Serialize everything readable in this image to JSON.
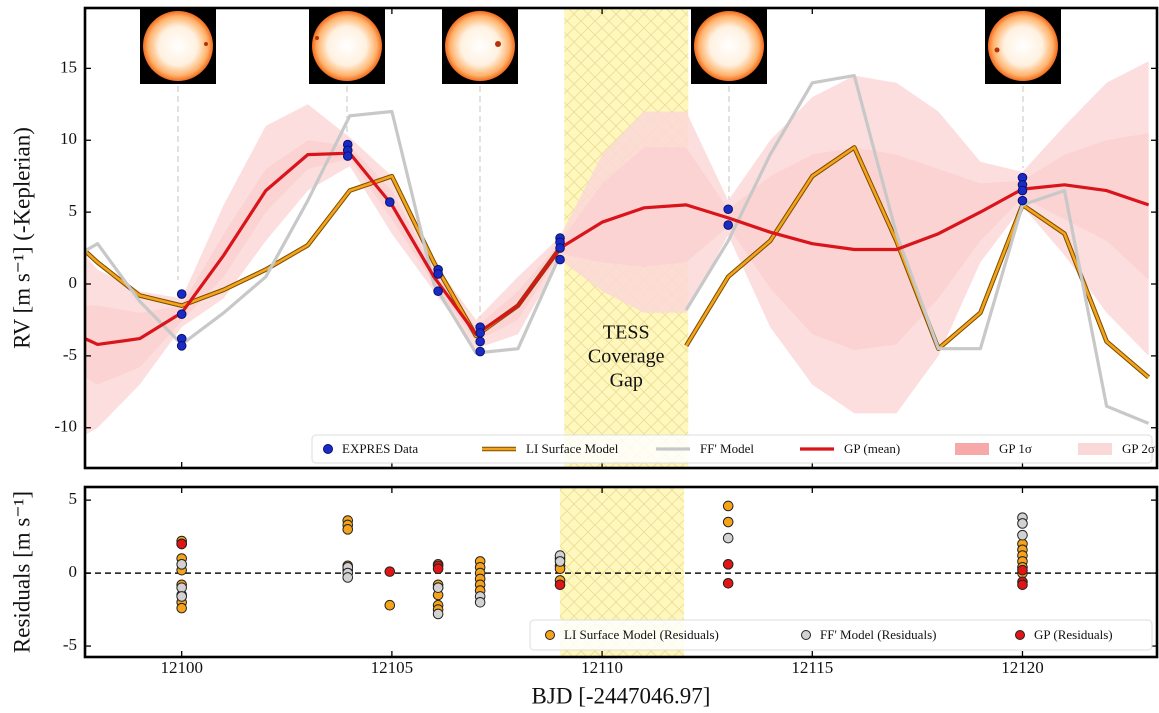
{
  "chart_data": [
    {
      "type": "line",
      "y_label": "RV [m s⁻¹] (-Keplerian)",
      "xlim": [
        12097.7,
        12123.2
      ],
      "xticks": [
        12100,
        12105,
        12110,
        12115,
        12120
      ],
      "ylim": [
        -12.8,
        19.2
      ],
      "yticks": [
        -10,
        -5,
        0,
        5,
        10,
        15
      ],
      "gap": [
        12109.1,
        12112.05
      ],
      "annotation": [
        "TESS",
        "Coverage",
        "Gap"
      ],
      "legend": "lower right",
      "x": [
        12097.7,
        12098,
        12099,
        12100,
        12101,
        12102,
        12103,
        12104,
        12105,
        12106,
        12107,
        12108,
        12109,
        12110,
        12111,
        12112,
        12113,
        12114,
        12115,
        12116,
        12117,
        12118,
        12119,
        12120,
        12121,
        12122,
        12123
      ],
      "series": [
        {
          "name": "EXPRES Data",
          "type": "scatter",
          "color": "#1a2bc4",
          "x": [
            12100,
            12100,
            12100,
            12100,
            12103.95,
            12103.95,
            12103.95,
            12104.95,
            12106.1,
            12106.1,
            12106.1,
            12107.1,
            12107.1,
            12107.1,
            12107.1,
            12109,
            12109,
            12109,
            12109,
            12113,
            12113,
            12120,
            12120,
            12120,
            12120
          ],
          "values": [
            -0.7,
            -2.1,
            -3.8,
            -4.3,
            9.7,
            9.3,
            8.9,
            5.7,
            1.0,
            0.7,
            -0.5,
            -3.0,
            -3.4,
            -4.0,
            -4.7,
            3.2,
            2.9,
            2.5,
            1.7,
            5.2,
            4.1,
            7.4,
            6.9,
            6.5,
            5.8
          ]
        },
        {
          "name": "LI Surface Model",
          "type": "line",
          "color": "#f5a31a",
          "values": [
            2.3,
            1.5,
            -0.8,
            -1.5,
            -0.4,
            1.0,
            2.7,
            6.5,
            7.5,
            1.5,
            -3.6,
            -1.5,
            2.5,
            null,
            null,
            -4.3,
            0.5,
            3,
            7.5,
            9.5,
            3,
            -4.5,
            -2,
            5.5,
            3.5,
            -4,
            -6.5
          ]
        },
        {
          "name": "FF' Model",
          "type": "line",
          "color": "#c8c8c8",
          "values": [
            2.3,
            2.8,
            -1.2,
            -4.2,
            -2.0,
            0.5,
            5.8,
            11.7,
            12,
            0,
            -4.8,
            -4.5,
            2.0,
            null,
            null,
            -1.8,
            3,
            9,
            14,
            14.5,
            3.5,
            -4.5,
            -4.5,
            5.5,
            6.5,
            -8.5,
            -9.7
          ]
        },
        {
          "name": "GP (mean)",
          "type": "line",
          "color": "#d9141b",
          "values": [
            -3.8,
            -4.2,
            -3.8,
            -2.0,
            2.0,
            6.5,
            9.0,
            9.1,
            5.5,
            0.5,
            -3.5,
            -1.5,
            2.5,
            4.3,
            5.3,
            5.5,
            4.6,
            3.6,
            2.8,
            2.4,
            2.4,
            3.5,
            5.0,
            6.6,
            6.9,
            6.5,
            5.5
          ]
        },
        {
          "name": "GP 1σ",
          "type": "band",
          "color": "#f7a9a9",
          "upper": [
            -1.5,
            -1.5,
            -2.0,
            -1.5,
            3.5,
            8,
            10,
            9.6,
            6.5,
            1.0,
            -3,
            -0.5,
            2.9,
            7,
            9.5,
            9.5,
            5.2,
            7.5,
            9,
            9.5,
            9,
            8,
            7,
            7.2,
            9,
            10,
            10.5
          ],
          "lower": [
            -6.5,
            -7,
            -5.8,
            -2.6,
            0.5,
            5,
            8,
            8.7,
            4.5,
            0,
            -4,
            -2.5,
            2.1,
            1.5,
            1.2,
            1.5,
            4.0,
            -0.3,
            -3.5,
            -4.6,
            -4.2,
            -1,
            3,
            6,
            4.5,
            3,
            0.3
          ]
        },
        {
          "name": "GP 2σ",
          "type": "band",
          "color": "#fbd8d8",
          "upper": [
            2,
            1,
            -0.5,
            -1,
            5.5,
            11,
            12.5,
            10.2,
            7.5,
            1.5,
            -2.5,
            0.5,
            3.3,
            9,
            12,
            12,
            5.8,
            10,
            13,
            14.5,
            14,
            12,
            8.5,
            7.8,
            11,
            14,
            15.5
          ],
          "lower": [
            -10.5,
            -10,
            -7,
            -3,
            -1,
            3,
            6.5,
            8.2,
            3.5,
            -0.5,
            -4.5,
            -3.5,
            1.7,
            -0.5,
            -2,
            -2,
            3.4,
            -3,
            -7,
            -9,
            -9,
            -5,
            1.5,
            5.4,
            2,
            -2,
            -5
          ]
        }
      ]
    },
    {
      "type": "scatter",
      "x_label": "BJD [-2447046.97]",
      "y_label": "Residuals [m s⁻¹]",
      "xlim": [
        12097.7,
        12123.2
      ],
      "xticks": [
        12100,
        12105,
        12110,
        12115,
        12120
      ],
      "ylim": [
        -5.75,
        5.9
      ],
      "yticks": [
        -5,
        0,
        5
      ],
      "gap": [
        12109.0,
        12111.95
      ],
      "hline": 0,
      "legend": "lower right",
      "series": [
        {
          "name": "LI Surface Model (Residuals)",
          "color": "#f5a31a",
          "x": [
            12100,
            12100,
            12100,
            12100,
            12100,
            12100,
            12100,
            12103.95,
            12103.95,
            12103.95,
            12103.95,
            12103.95,
            12104.95,
            12106.1,
            12106.1,
            12106.1,
            12106.1,
            12106.1,
            12106.1,
            12107.1,
            12107.1,
            12107.1,
            12107.1,
            12107.1,
            12107.1,
            12109,
            12109,
            12109,
            12109,
            12113,
            12113,
            12120,
            12120,
            12120,
            12120,
            12120,
            12120
          ],
          "values": [
            2.2,
            1.0,
            0.2,
            -0.8,
            -1.5,
            -2.0,
            -2.4,
            3.6,
            3.3,
            3.0,
            0.5,
            0.2,
            -2.2,
            0.6,
            -0.8,
            -1.0,
            -1.5,
            -2.2,
            -2.5,
            0.8,
            0.4,
            0,
            -0.4,
            -0.8,
            -1.2,
            1.0,
            0.5,
            0.3,
            -0.5,
            4.6,
            3.5,
            2.0,
            1.6,
            1.2,
            0.8,
            0.4,
            0
          ]
        },
        {
          "name": "FF' Model (Residuals)",
          "color": "#d2d2d2",
          "x": [
            12100,
            12100,
            12100,
            12100,
            12103.95,
            12103.95,
            12103.95,
            12106.1,
            12106.1,
            12107.1,
            12107.1,
            12109,
            12109,
            12113,
            12120,
            12120,
            12120
          ],
          "values": [
            2.0,
            0.6,
            -1.0,
            -1.6,
            0.4,
            0,
            -0.3,
            -2.8,
            -1.0,
            -1.6,
            -2.0,
            1.2,
            0.8,
            2.4,
            3.8,
            3.4,
            2.6
          ]
        },
        {
          "name": "GP (Residuals)",
          "color": "#e01515",
          "x": [
            12100,
            12104.95,
            12106.1,
            12106.1,
            12109,
            12113,
            12113,
            12120,
            12120,
            12120
          ],
          "values": [
            2.0,
            0.1,
            0.5,
            0.3,
            -0.8,
            0.6,
            -0.7,
            0.2,
            -0.6,
            -0.8
          ]
        }
      ]
    }
  ]
}
